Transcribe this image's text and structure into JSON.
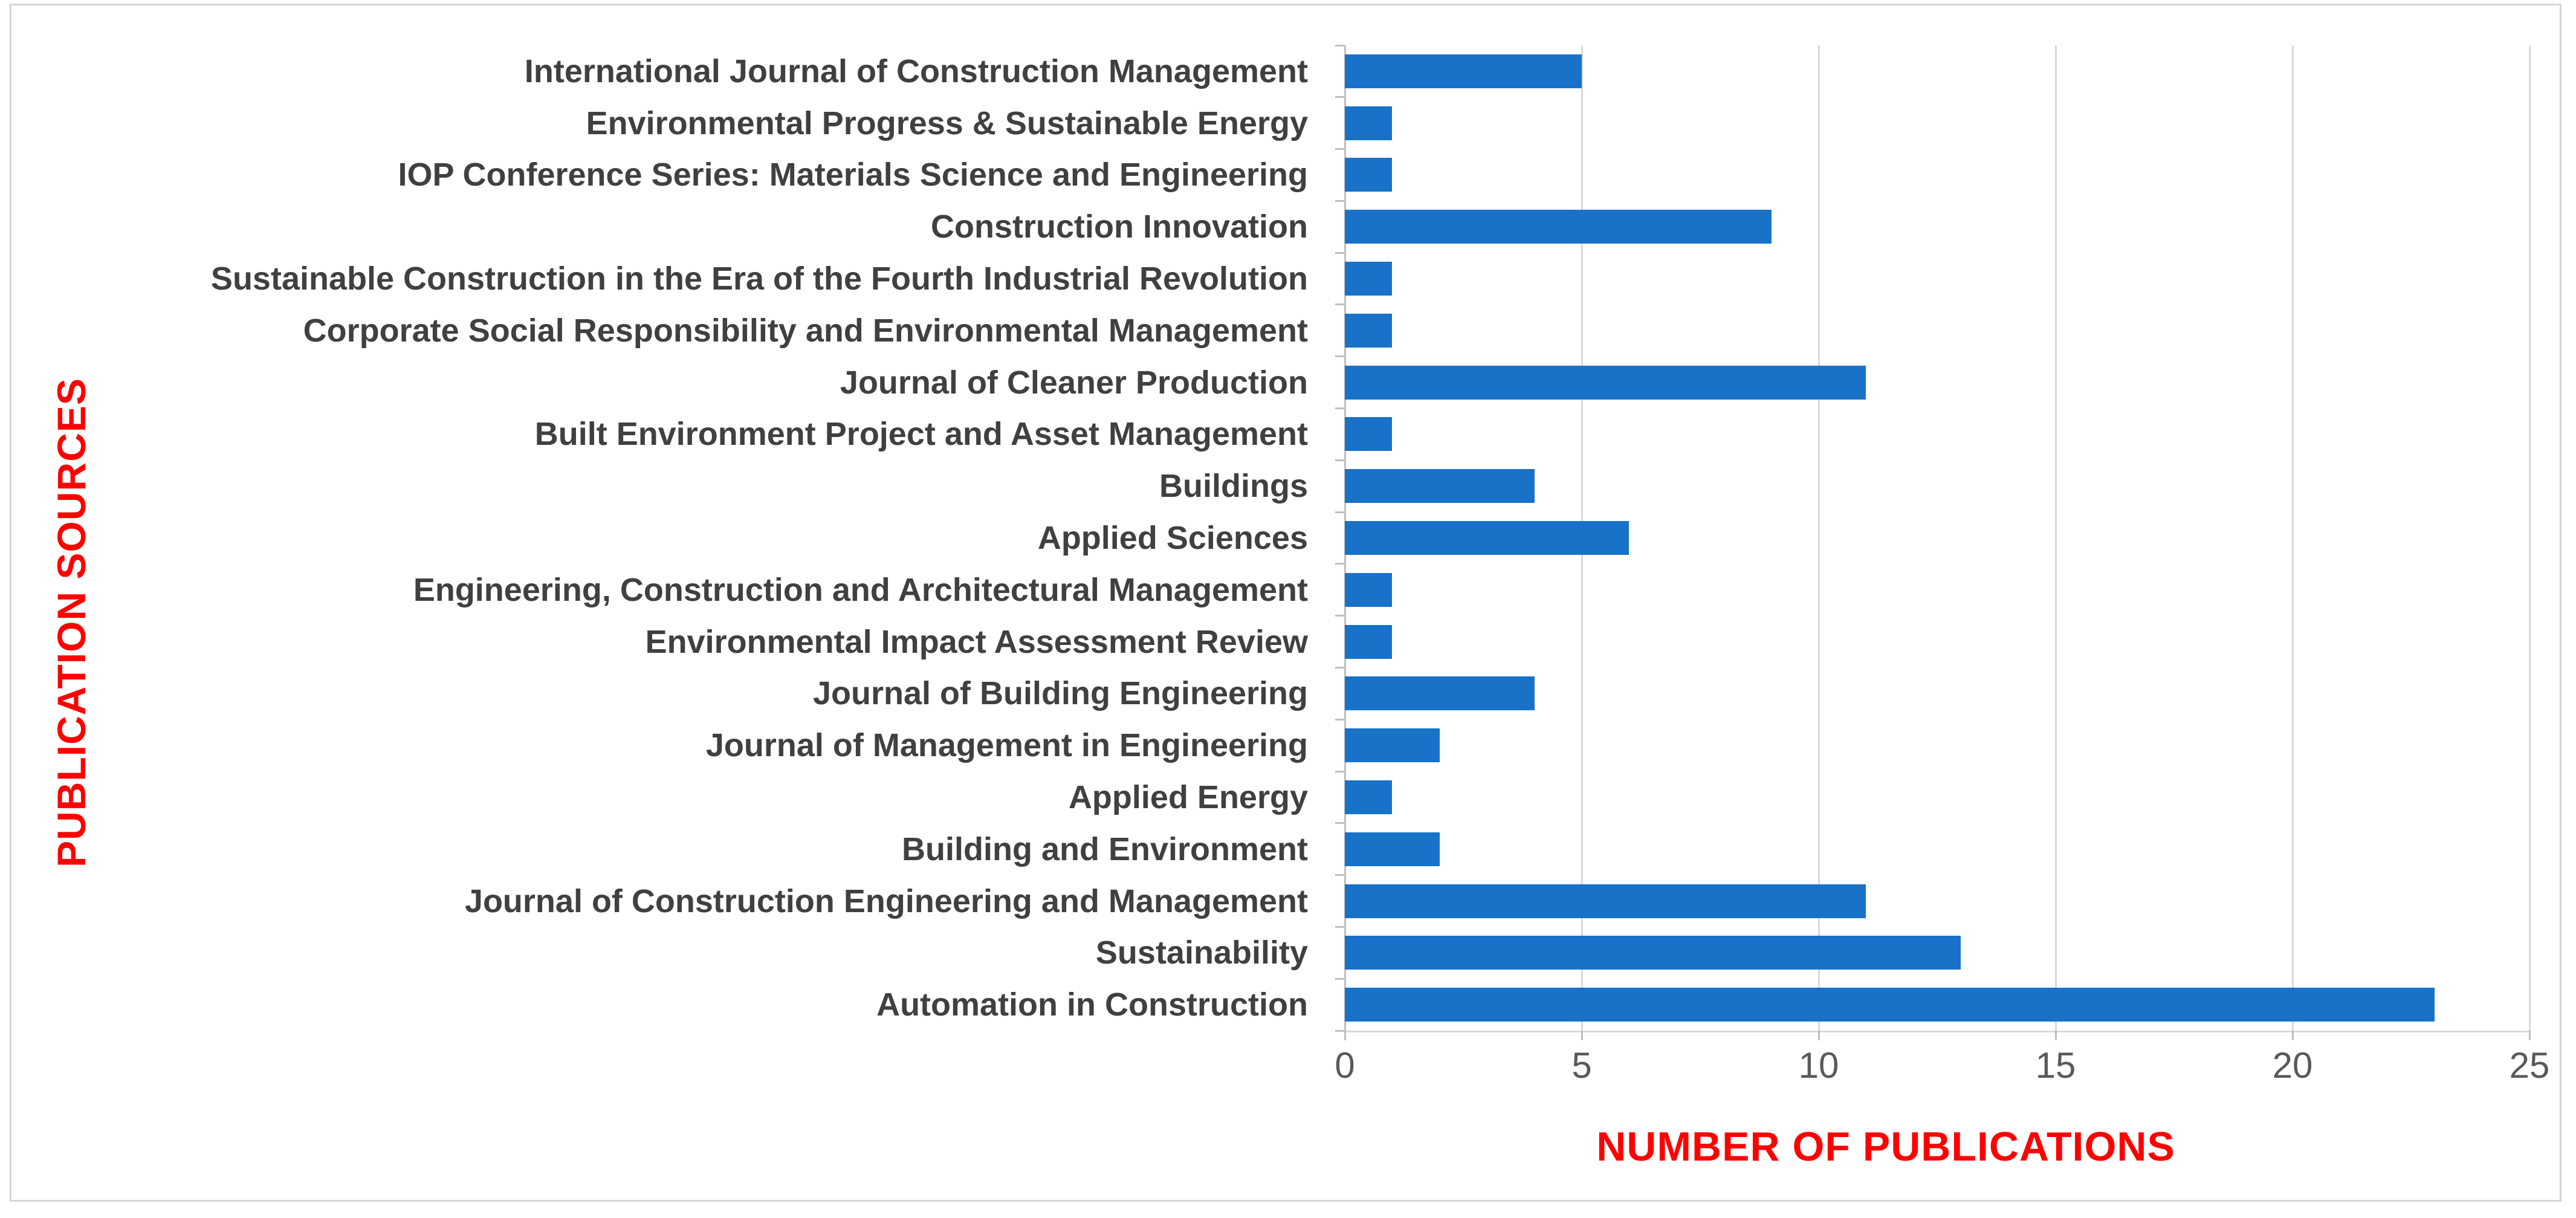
{
  "figure": {
    "background": "#FFFFFF",
    "border_color": "#D5D5D5"
  },
  "chart_data": {
    "type": "bar",
    "orientation": "horizontal",
    "xlabel": "NUMBER OF PUBLICATIONS",
    "ylabel": "PUBLICATION SOURCES",
    "xlim": [
      0,
      25
    ],
    "xticks": [
      0,
      5,
      10,
      15,
      20,
      25
    ],
    "grid": true,
    "legend": false,
    "categories": [
      "International Journal of Construction Management",
      "Environmental Progress & Sustainable Energy",
      "IOP Conference Series: Materials Science and Engineering",
      "Construction Innovation",
      "Sustainable Construction in the Era of the Fourth Industrial Revolution",
      "Corporate Social Responsibility and Environmental Management",
      "Journal of Cleaner Production",
      "Built Environment Project and Asset Management",
      "Buildings",
      "Applied Sciences",
      "Engineering, Construction and Architectural Management",
      "Environmental Impact Assessment Review",
      "Journal of Building Engineering",
      "Journal of Management in Engineering",
      "Applied Energy",
      "Building and Environment",
      "Journal of Construction Engineering and Management",
      "Sustainability",
      "Automation in Construction"
    ],
    "values": [
      5,
      1,
      1,
      9,
      1,
      1,
      11,
      1,
      4,
      6,
      1,
      1,
      4,
      2,
      1,
      2,
      11,
      13,
      23
    ],
    "colors": {
      "bar": "#1872C8",
      "axis_title": "#FF0000",
      "category_label": "#404040",
      "tick_label": "#595959",
      "gridline": "#D9D9D9",
      "axis_line": "#BFBFBF"
    }
  }
}
